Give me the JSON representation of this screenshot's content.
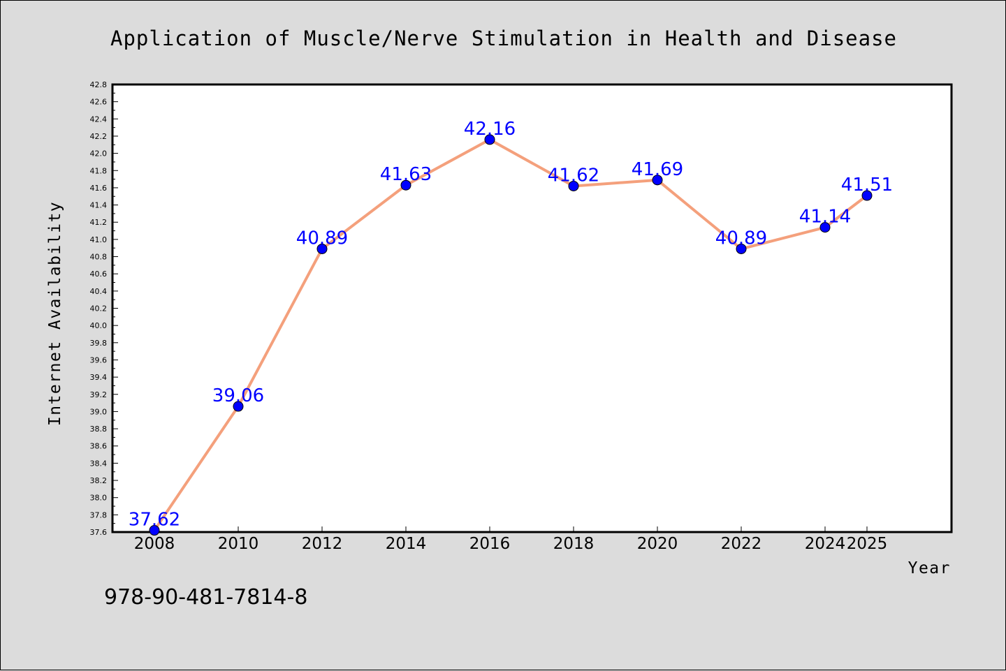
{
  "footnote": "978-90-481-7814-8",
  "chart_data": {
    "type": "line",
    "title": "Application of Muscle/Nerve Stimulation in Health and Disease",
    "xlabel": "Year",
    "ylabel": "Internet Availability",
    "x": [
      "2008",
      "2010",
      "2012",
      "2014",
      "2016",
      "2018",
      "2020",
      "2022",
      "2024",
      "2025"
    ],
    "series": [
      {
        "values": [
          37.62,
          39.06,
          40.89,
          41.63,
          42.16,
          41.62,
          41.69,
          40.89,
          41.14,
          41.51
        ],
        "data_labels": [
          "37.62",
          "39.06",
          "40.89",
          "41.63",
          "42.16",
          "41.62",
          "41.69",
          "40.89",
          "41.14",
          "41.51"
        ],
        "line_color": "#f4a07c",
        "marker_color": "#0000ff"
      }
    ],
    "ylim": [
      37.6,
      42.8
    ],
    "yticks": [
      "37.6",
      "37.8",
      "38.0",
      "38.2",
      "38.4",
      "38.6",
      "38.8",
      "39.0",
      "39.2",
      "39.4",
      "39.6",
      "39.8",
      "40.0",
      "40.2",
      "40.4",
      "40.6",
      "40.8",
      "41.0",
      "41.2",
      "41.4",
      "41.6",
      "41.8",
      "42.0",
      "42.2",
      "42.4",
      "42.6",
      "42.8"
    ],
    "grid": false,
    "legend": "none",
    "background": "#dcdcdc",
    "plot_background": "#ffffff"
  }
}
